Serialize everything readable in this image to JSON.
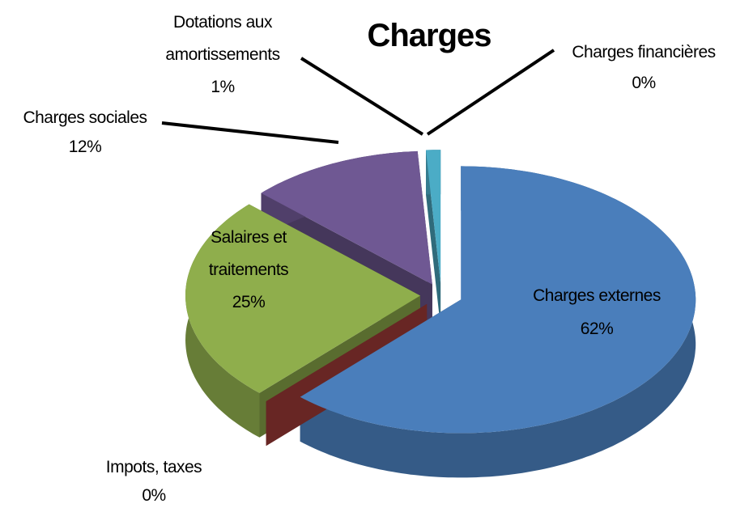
{
  "chart_data": {
    "type": "pie3d",
    "title": "Charges",
    "categories": [
      "Charges externes",
      "Impots, taxes",
      "Salaires et traitements",
      "Charges sociales",
      "Dotations aux amortissements",
      "Charges financières"
    ],
    "values": [
      62,
      0,
      25,
      12,
      1,
      0
    ],
    "value_labels": [
      "62%",
      "0%",
      "25%",
      "12%",
      "1%",
      "0%"
    ],
    "colors": [
      "#4a7ebb",
      "#a83d3a",
      "#8fae4c",
      "#6f5893",
      "#4bacc6",
      "#f79646"
    ]
  }
}
